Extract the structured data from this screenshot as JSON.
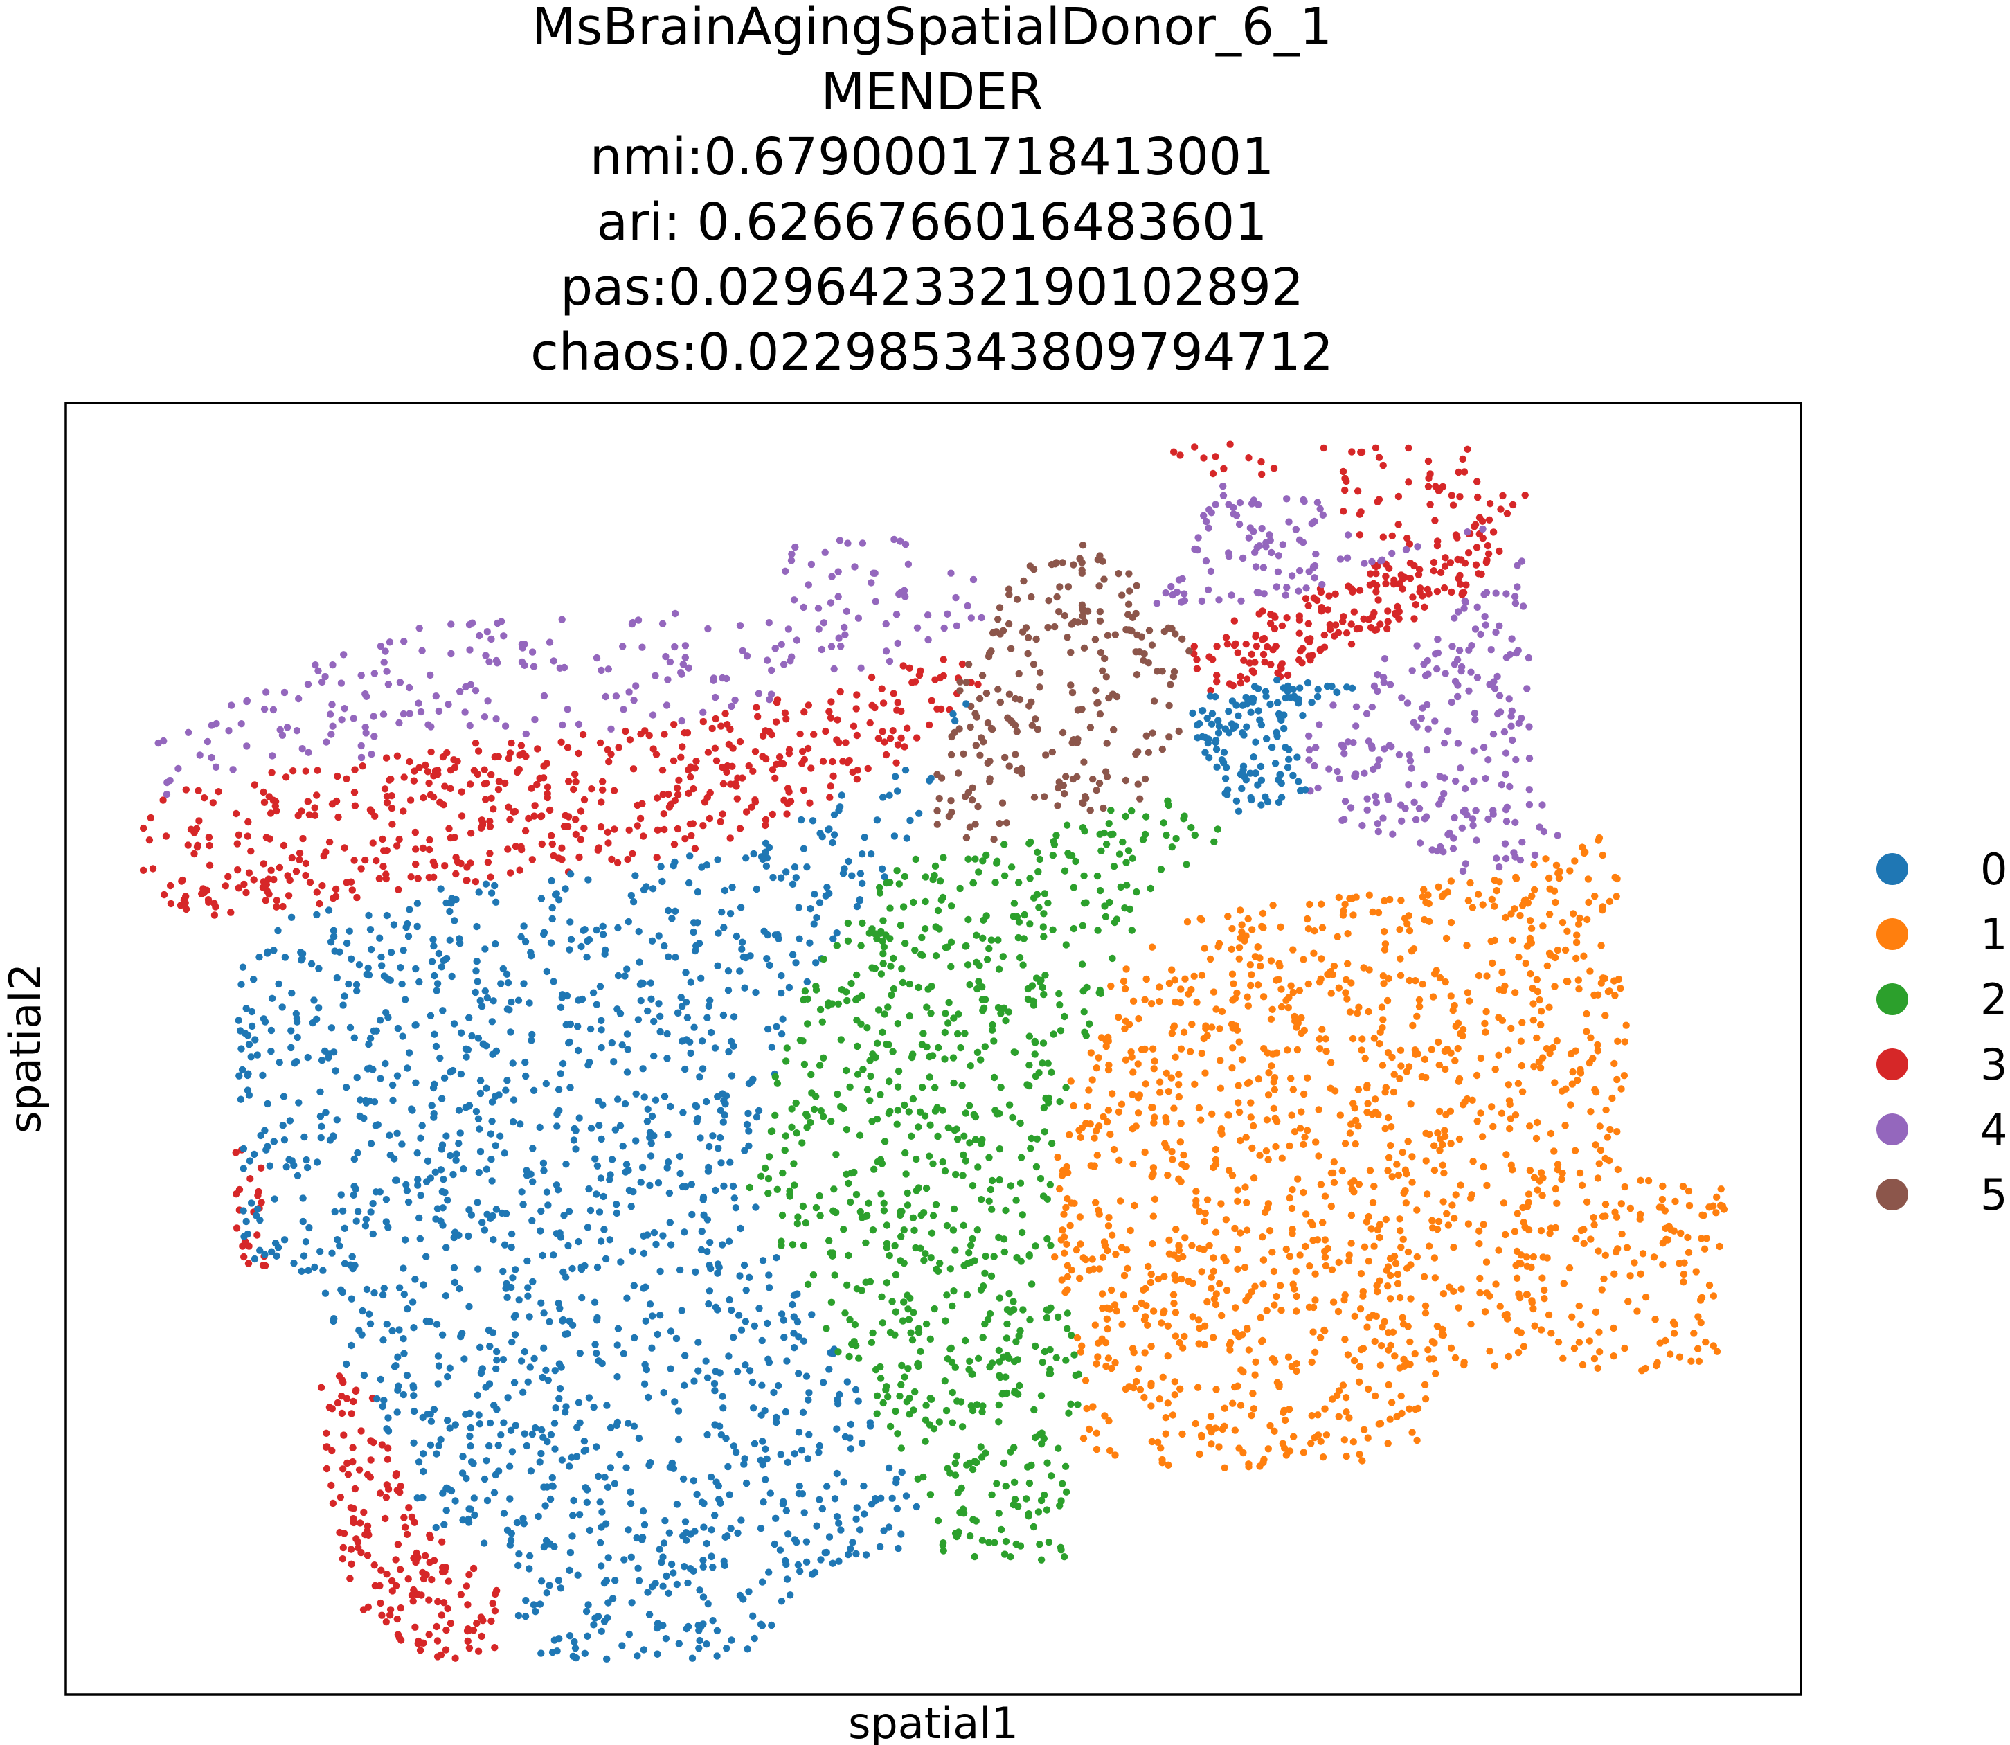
{
  "chart_data": {
    "type": "scatter",
    "title_lines": [
      "MsBrainAgingSpatialDonor_6_1",
      "MENDER",
      "nmi:0.6790001718413001",
      "ari: 0.6266766016483601",
      "pas:0.029642332190102892",
      "chaos:0.022985343809794712"
    ],
    "xlabel": "spatial1",
    "ylabel": "spatial2",
    "xticks": [],
    "yticks": [],
    "grid": false,
    "legend": {
      "placement": "right"
    },
    "series": [
      {
        "name": "0",
        "color": "#1f77b4"
      },
      {
        "name": "1",
        "color": "#ff7f0e"
      },
      {
        "name": "2",
        "color": "#2ca02c"
      },
      {
        "name": "3",
        "color": "#d62728"
      },
      {
        "name": "4",
        "color": "#9467bd"
      },
      {
        "name": "5",
        "color": "#8c564b"
      }
    ]
  }
}
